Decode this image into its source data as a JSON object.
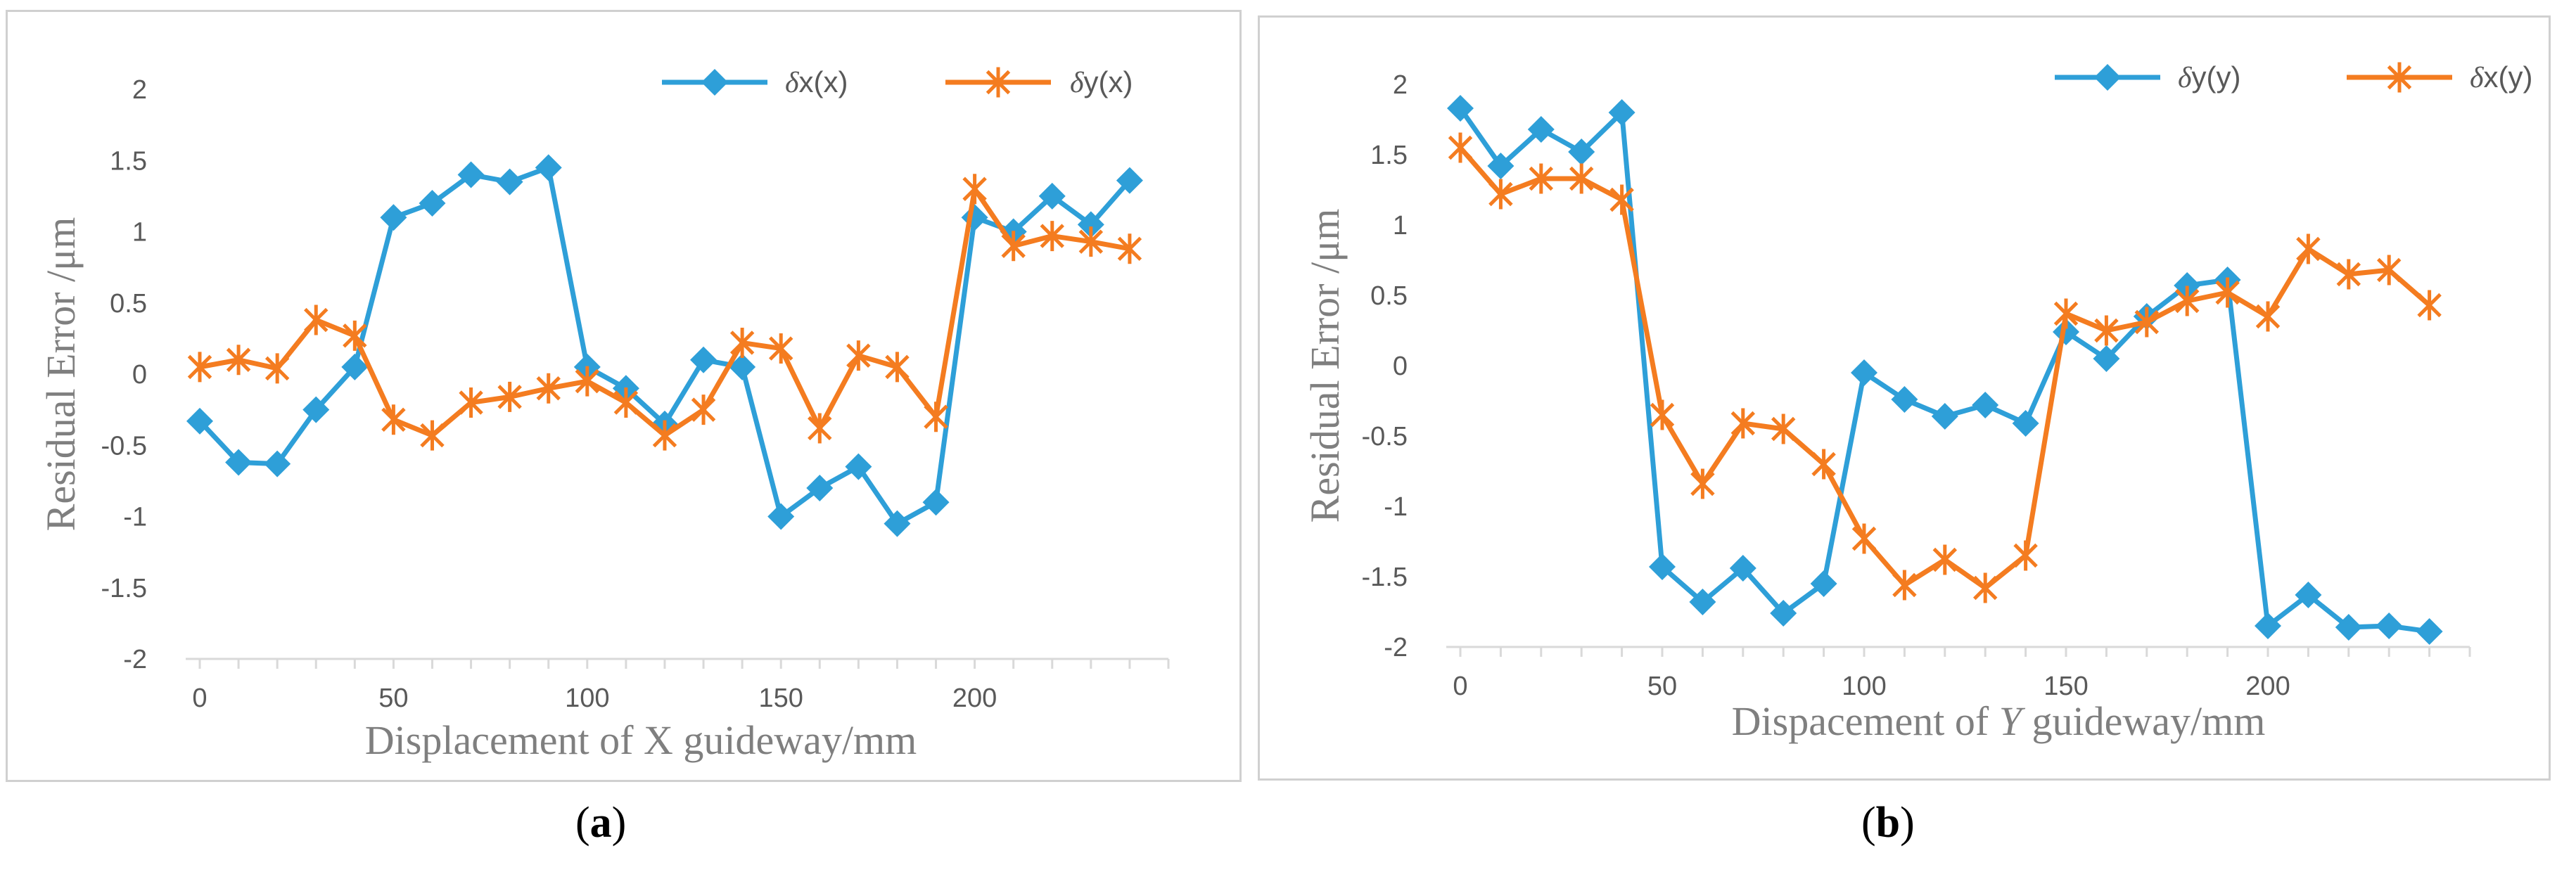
{
  "chart_data": [
    {
      "type": "line",
      "panel_label": "a",
      "xlabel": "Displacement of X guideway/mm",
      "ylabel": "Residual Error /μm",
      "x": [
        0,
        10,
        20,
        30,
        40,
        50,
        60,
        70,
        80,
        90,
        100,
        110,
        120,
        130,
        140,
        150,
        160,
        170,
        180,
        190,
        200,
        210,
        220,
        230,
        240
      ],
      "x_ticks": [
        0,
        50,
        100,
        150,
        200
      ],
      "y_ticks": [
        2,
        1.5,
        1,
        0.5,
        0,
        -0.5,
        -1,
        -1.5,
        -2
      ],
      "xlim": [
        0,
        250
      ],
      "ylim": [
        -2,
        2
      ],
      "legend_position": "top-right",
      "series": [
        {
          "name_sym": "δ",
          "name": "x(x)",
          "color": "#2e9fd8",
          "marker": "diamond",
          "values": [
            -0.33,
            -0.62,
            -0.63,
            -0.25,
            0.05,
            1.1,
            1.2,
            1.4,
            1.35,
            1.45,
            0.05,
            -0.1,
            -0.35,
            0.1,
            0.05,
            -1.0,
            -0.8,
            -0.65,
            -1.05,
            -0.9,
            1.1,
            1.0,
            1.25,
            1.05,
            1.36
          ]
        },
        {
          "name_sym": "δ",
          "name": "y(x)",
          "color": "#f47c20",
          "marker": "asterisk",
          "values": [
            0.05,
            0.1,
            0.04,
            0.38,
            0.27,
            -0.32,
            -0.43,
            -0.2,
            -0.16,
            -0.1,
            -0.05,
            -0.2,
            -0.43,
            -0.25,
            0.22,
            0.18,
            -0.38,
            0.13,
            0.05,
            -0.3,
            1.3,
            0.9,
            0.97,
            0.93,
            0.88
          ]
        }
      ]
    },
    {
      "type": "line",
      "panel_label": "b",
      "xlabel_pre": "Dispacement of ",
      "xlabel_var": "Y",
      "xlabel_post": " guideway/mm",
      "ylabel": "Residual Error /μm",
      "x": [
        0,
        10,
        20,
        30,
        40,
        50,
        60,
        70,
        80,
        90,
        100,
        110,
        120,
        130,
        140,
        150,
        160,
        170,
        180,
        190,
        200,
        210,
        220,
        230,
        240
      ],
      "x_ticks": [
        0,
        50,
        100,
        150,
        200
      ],
      "y_ticks": [
        2,
        1.5,
        1,
        0.5,
        0,
        -0.5,
        -1,
        -1.5,
        -2
      ],
      "xlim": [
        0,
        250
      ],
      "ylim": [
        -2,
        2
      ],
      "legend_position": "top-right",
      "series": [
        {
          "name_sym": "δ",
          "name": "y(y)",
          "color": "#2e9fd8",
          "marker": "diamond",
          "values": [
            1.83,
            1.42,
            1.68,
            1.52,
            1.8,
            -1.43,
            -1.68,
            -1.44,
            -1.76,
            -1.55,
            -0.05,
            -0.24,
            -0.36,
            -0.28,
            -0.41,
            0.24,
            0.05,
            0.35,
            0.57,
            0.61,
            -1.85,
            -1.63,
            -1.86,
            -1.85,
            -1.89
          ]
        },
        {
          "name_sym": "δ",
          "name": "x(y)",
          "color": "#f47c20",
          "marker": "asterisk",
          "values": [
            1.55,
            1.22,
            1.33,
            1.33,
            1.18,
            -0.35,
            -0.84,
            -0.41,
            -0.45,
            -0.7,
            -1.23,
            -1.56,
            -1.38,
            -1.58,
            -1.35,
            0.37,
            0.25,
            0.31,
            0.46,
            0.52,
            0.35,
            0.83,
            0.65,
            0.68,
            0.43
          ]
        }
      ]
    }
  ]
}
